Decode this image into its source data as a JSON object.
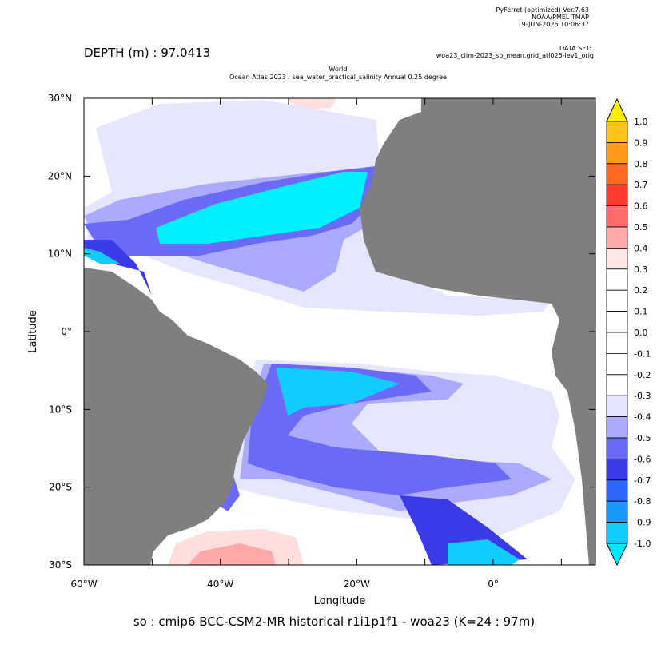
{
  "header": {
    "software": "PyFerret (optimized) Ver.7.63",
    "org": "NOAA/PMEL TMAP",
    "date": "19-JUN-2026 10:06:37",
    "dataset_label": "DATA SET:",
    "dataset": "woa23_clim-2023_so_mean.grid_atl025-lev1_orig",
    "depth": "DEPTH (m) : 97.0413",
    "title_line1": "World",
    "title_line2": "Ocean Atlas 2023 : sea_water_practical_salinity Annual  0.25 degree"
  },
  "axes": {
    "y_label": "Latitude",
    "x_label": "Longitude",
    "y_ticks": [
      "30°N",
      "20°N",
      "10°N",
      "0°",
      "10°S",
      "20°S",
      "30°S"
    ],
    "x_ticks": [
      "60°W",
      "40°W",
      "20°W",
      "0°"
    ]
  },
  "colorbar": {
    "labels": [
      "1.0",
      "0.9",
      "0.8",
      "0.7",
      "0.6",
      "0.5",
      "0.4",
      "0.3",
      "0.2",
      "0.1",
      "0.0",
      "-0.1",
      "-0.2",
      "-0.3",
      "-0.4",
      "-0.5",
      "-0.6",
      "-0.7",
      "-0.8",
      "-0.9",
      "-1.0"
    ],
    "colors": [
      "#ffee00",
      "#ffc21a",
      "#ff9a1a",
      "#ff6a22",
      "#ff3a30",
      "#ff6a6a",
      "#ffaaaa",
      "#ffe6e6",
      "#ffffff",
      "#ffffff",
      "#ffffff",
      "#ffffff",
      "#ffffff",
      "#ffffff",
      "#e4e4ff",
      "#aaaaff",
      "#6a6af6",
      "#3a3ae8",
      "#2a66ff",
      "#1a9aff",
      "#12ccff",
      "#00e6ff"
    ]
  },
  "footer": "so : cmip6 BCC-CSM2-MR historical r1i1p1f1 - woa23  (K=24 : 97m)"
}
